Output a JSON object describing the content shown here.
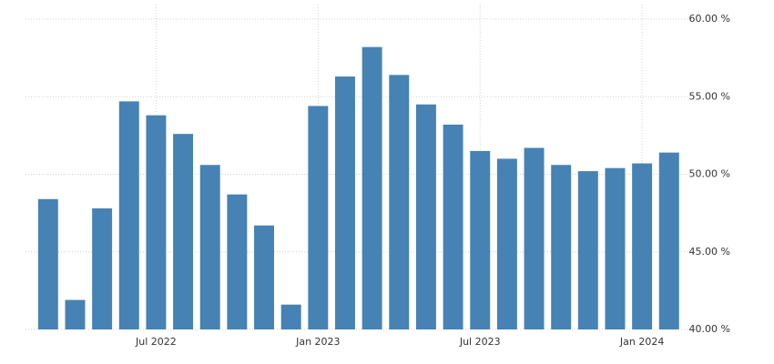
{
  "chart_data": {
    "type": "bar",
    "categories": [
      null,
      null,
      null,
      null,
      "Jul 2022",
      null,
      null,
      null,
      null,
      null,
      "Jan 2023",
      null,
      null,
      null,
      null,
      null,
      "Jul 2023",
      null,
      null,
      null,
      null,
      null,
      "Jan 2024",
      null
    ],
    "values": [
      48.4,
      41.9,
      47.8,
      54.7,
      53.8,
      52.6,
      50.6,
      48.7,
      46.7,
      41.6,
      54.4,
      56.3,
      58.2,
      56.4,
      54.5,
      53.2,
      51.5,
      51.0,
      51.7,
      50.6,
      50.2,
      50.4,
      50.7,
      51.4
    ],
    "color": "#4682b4",
    "ylim": [
      40,
      60
    ],
    "yticks": [
      {
        "value": 40,
        "label": "40.00 %"
      },
      {
        "value": 45,
        "label": "45.00 %"
      },
      {
        "value": 50,
        "label": "50.00 %"
      },
      {
        "value": 55,
        "label": "55.00 %"
      },
      {
        "value": 60,
        "label": "60.00 %"
      }
    ],
    "grid": true
  }
}
